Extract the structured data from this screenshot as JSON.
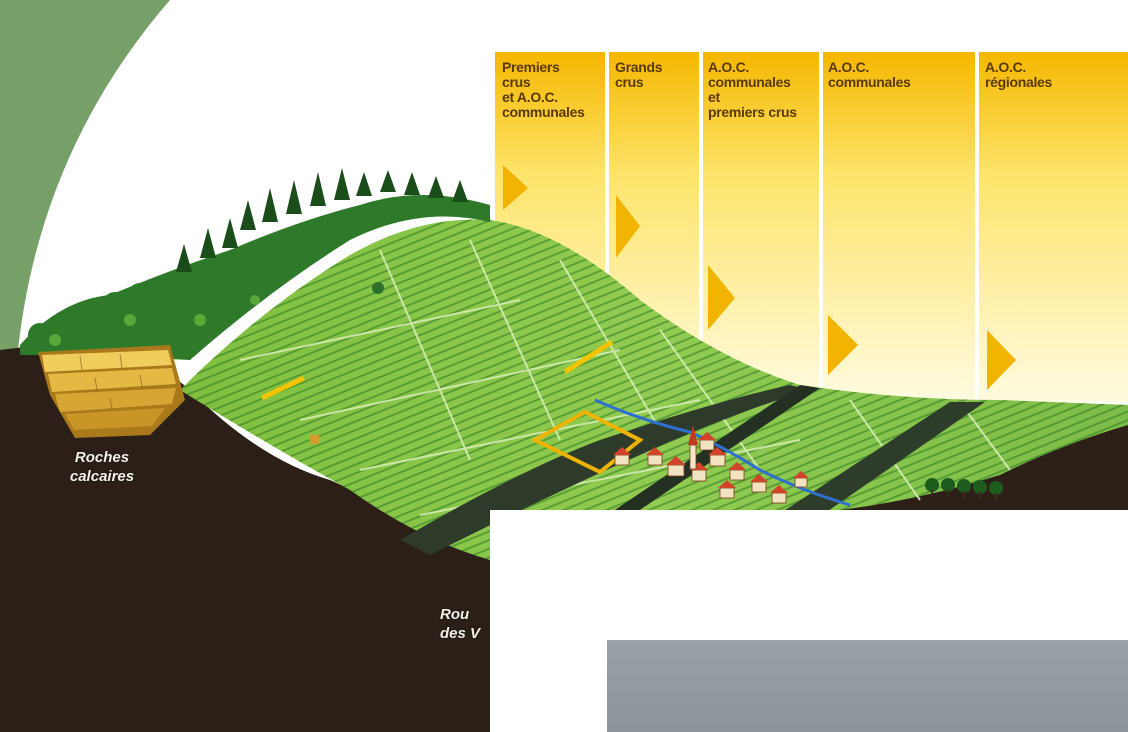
{
  "bands": [
    {
      "id": "premiers-crus-aoc",
      "label": "Premiers\ncrus\net A.O.C.\ncommunales"
    },
    {
      "id": "grands-crus",
      "label": "Grands\ncrus"
    },
    {
      "id": "aoc-communales-premiers",
      "label": "A.O.C.\ncommunales\net\npremiers crus"
    },
    {
      "id": "aoc-communales",
      "label": "A.O.C.\ncommunales"
    },
    {
      "id": "aoc-regionales",
      "label": "A.O.C.\nrégionales"
    }
  ],
  "labels": {
    "rock": "Roches\ncalcaires",
    "road": "Rou\ndes V"
  },
  "colors": {
    "band_top": "#f6b800",
    "band_bottom": "#fff7c0",
    "vine_light": "#9fd15a",
    "vine_dark": "#3f8f2a",
    "soil": "#2a1e17",
    "forest": "#1f5e1f",
    "rock": "#d8a936"
  }
}
